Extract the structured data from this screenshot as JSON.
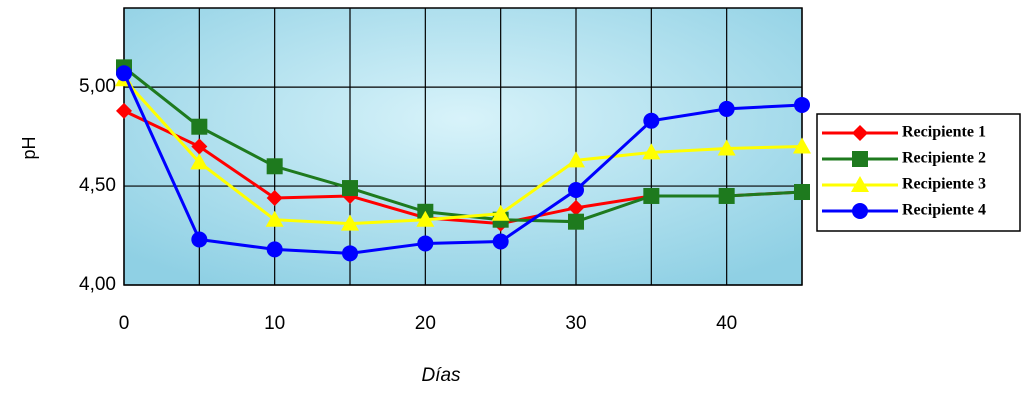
{
  "chart_data": {
    "type": "line",
    "x_label": "Días",
    "y_label": "pH",
    "x": [
      0,
      5,
      10,
      15,
      20,
      25,
      30,
      35,
      40,
      45
    ],
    "xlim": [
      0,
      45
    ],
    "xticks": [
      0,
      10,
      20,
      30,
      40
    ],
    "ylim": [
      4,
      5.4
    ],
    "yticks": [
      {
        "value": 4,
        "label": "4,00"
      },
      {
        "value": 4.5,
        "label": "4,50"
      },
      {
        "value": 5,
        "label": "5,00"
      }
    ],
    "grid": true,
    "legend": "right",
    "series": [
      {
        "name": "Recipiente 1",
        "color": "#ff0000",
        "marker": "diamond",
        "values": [
          4.88,
          4.7,
          4.44,
          4.45,
          4.34,
          4.31,
          4.39,
          4.45,
          4.45,
          4.47
        ]
      },
      {
        "name": "Recipiente 2",
        "color": "#1e7a1e",
        "marker": "square",
        "values": [
          5.1,
          4.8,
          4.6,
          4.49,
          4.37,
          4.33,
          4.32,
          4.45,
          4.45,
          4.47
        ]
      },
      {
        "name": "Recipiente 3",
        "color": "#ffff00",
        "marker": "triangle",
        "values": [
          5.04,
          4.62,
          4.33,
          4.31,
          4.33,
          4.36,
          4.63,
          4.67,
          4.69,
          4.7
        ]
      },
      {
        "name": "Recipiente 4",
        "color": "#0000ff",
        "marker": "circle",
        "values": [
          5.07,
          4.23,
          4.18,
          4.16,
          4.21,
          4.22,
          4.48,
          4.83,
          4.89,
          4.91
        ]
      }
    ]
  }
}
